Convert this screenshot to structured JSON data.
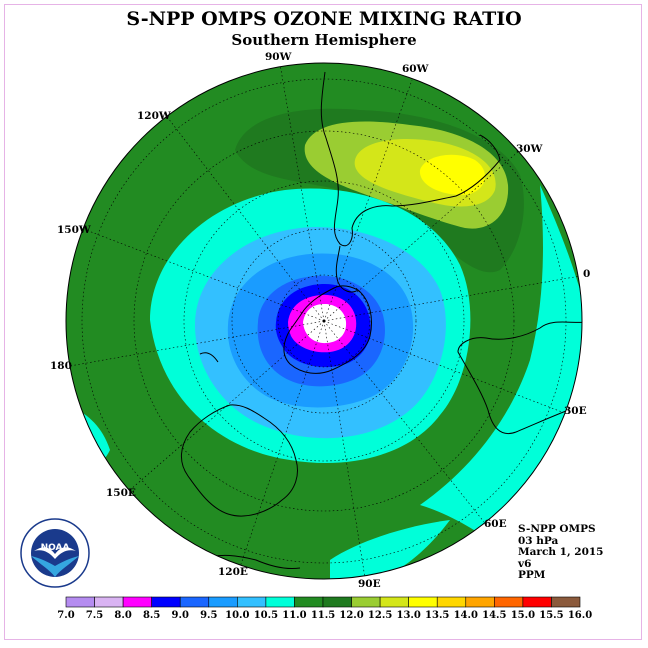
{
  "header": {
    "title": "S-NPP OMPS OZONE MIXING RATIO",
    "subtitle": "Southern Hemisphere"
  },
  "map": {
    "projection": "south-polar-stereographic",
    "longitude_labels": [
      "90W",
      "60W",
      "30W",
      "0",
      "30E",
      "60E",
      "90E",
      "120E",
      "150E",
      "180",
      "150W",
      "120W"
    ]
  },
  "info_block": {
    "instrument": "S-NPP OMPS",
    "level": "03 hPa",
    "date": "March 1, 2015",
    "version": "v6",
    "units": "PPM"
  },
  "colorbar": {
    "tick_labels": [
      "7.0",
      "7.5",
      "8.0",
      "8.5",
      "9.0",
      "9.5",
      "10.0",
      "10.5",
      "11.0",
      "11.5",
      "12.0",
      "12.5",
      "13.0",
      "13.5",
      "14.0",
      "14.5",
      "15.0",
      "15.5",
      "16.0"
    ],
    "colors": [
      "#b58cf0",
      "#d9b3f2",
      "#ff00ff",
      "#0000ff",
      "#1a66ff",
      "#1a9cff",
      "#33c0ff",
      "#00ffd9",
      "#228b22",
      "#1f7a1f",
      "#9acd32",
      "#d4e619",
      "#ffff00",
      "#ffd700",
      "#ffa500",
      "#ff6600",
      "#ff0000",
      "#8b5a3c"
    ]
  },
  "logo": {
    "text": "NOAA",
    "ring_text": "NATIONAL OCEANIC AND ATMOSPHERIC ADMINISTRATION · U.S. DEPARTMENT OF COMMERCE"
  }
}
